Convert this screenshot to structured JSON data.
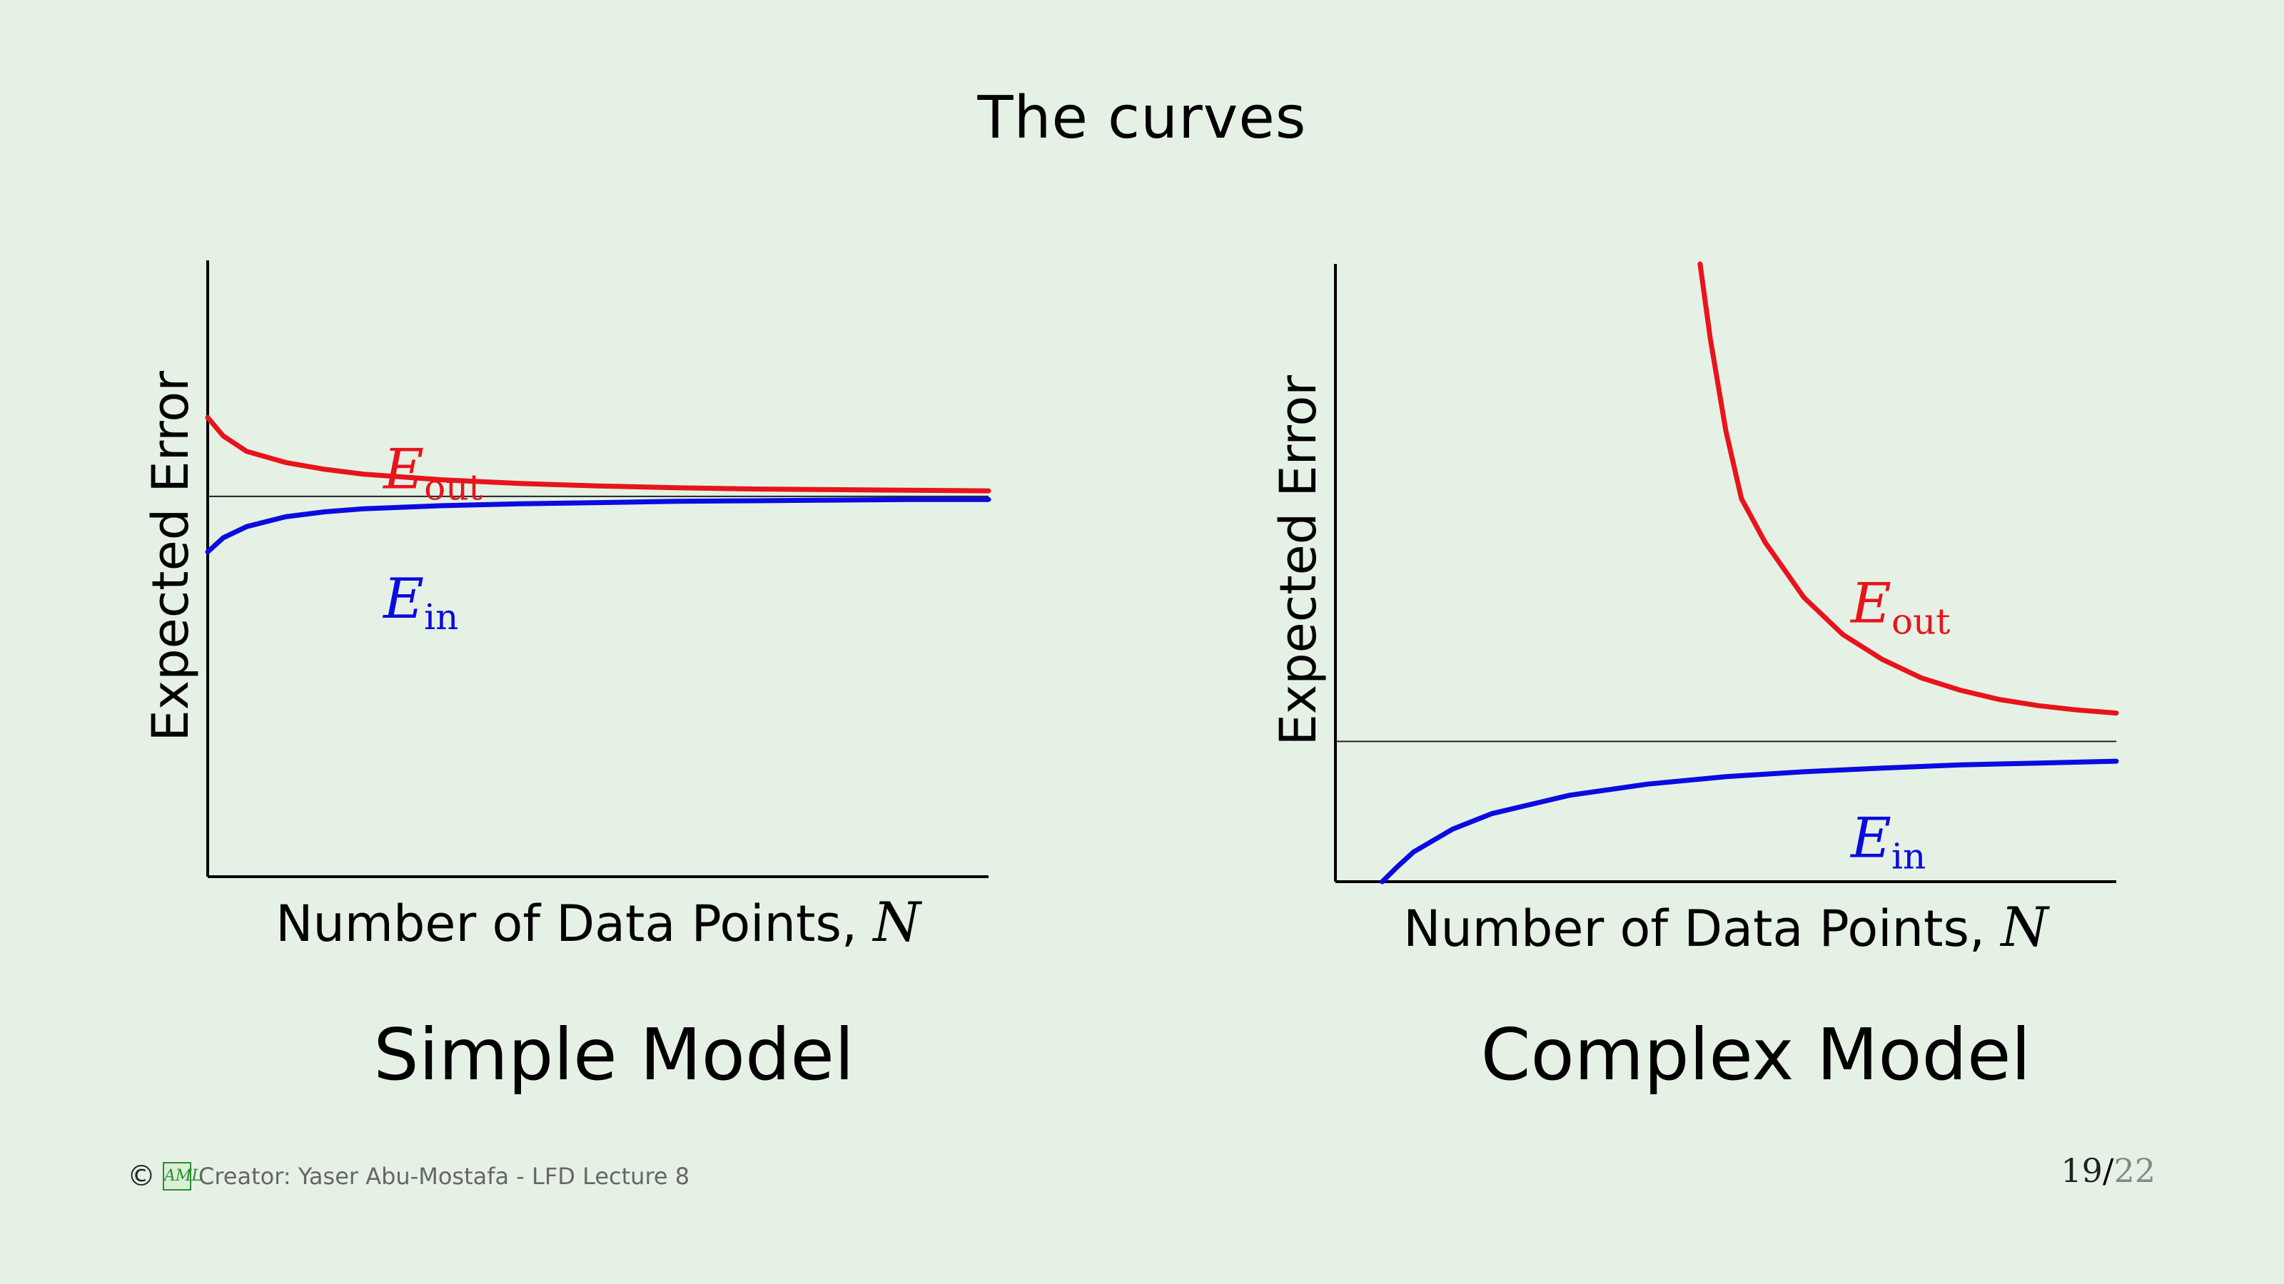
{
  "slide": {
    "title": "The curves"
  },
  "chart_data": [
    {
      "type": "line",
      "title": "Simple Model",
      "xlabel": "Number of Data Points, ",
      "xlabel_var": "N",
      "ylabel": "Expected Error",
      "xlim": [
        0,
        1
      ],
      "ylim": [
        0,
        1
      ],
      "asymptote": 0.617,
      "series": [
        {
          "name": "E",
          "sub": "out",
          "color": "#e8141c",
          "x": [
            0.0,
            0.02,
            0.05,
            0.1,
            0.15,
            0.2,
            0.3,
            0.4,
            0.5,
            0.6,
            0.7,
            0.8,
            0.9,
            1.0
          ],
          "y": [
            0.745,
            0.715,
            0.69,
            0.672,
            0.661,
            0.653,
            0.644,
            0.638,
            0.634,
            0.631,
            0.629,
            0.628,
            0.627,
            0.626
          ]
        },
        {
          "name": "E",
          "sub": "in",
          "color": "#0b0be0",
          "x": [
            0.0,
            0.02,
            0.05,
            0.1,
            0.15,
            0.2,
            0.3,
            0.4,
            0.5,
            0.6,
            0.7,
            0.8,
            0.9,
            1.0
          ],
          "y": [
            0.527,
            0.55,
            0.568,
            0.584,
            0.592,
            0.597,
            0.602,
            0.605,
            0.607,
            0.609,
            0.61,
            0.611,
            0.612,
            0.612
          ]
        }
      ]
    },
    {
      "type": "line",
      "title": "Complex Model",
      "xlabel": "Number of Data Points, ",
      "xlabel_var": "N",
      "ylabel": "Expected Error",
      "xlim": [
        0,
        1
      ],
      "ylim": [
        0,
        1
      ],
      "asymptote": 0.227,
      "series": [
        {
          "name": "E",
          "sub": "out",
          "color": "#e8141c",
          "x": [
            0.467,
            0.48,
            0.5,
            0.52,
            0.55,
            0.6,
            0.65,
            0.7,
            0.75,
            0.8,
            0.85,
            0.9,
            0.95,
            1.0
          ],
          "y": [
            1.0,
            0.88,
            0.73,
            0.62,
            0.55,
            0.46,
            0.4,
            0.36,
            0.33,
            0.31,
            0.295,
            0.285,
            0.278,
            0.273
          ]
        },
        {
          "name": "E",
          "sub": "in",
          "color": "#0b0be0",
          "x": [
            0.06,
            0.08,
            0.1,
            0.15,
            0.2,
            0.3,
            0.4,
            0.5,
            0.6,
            0.7,
            0.8,
            0.9,
            1.0
          ],
          "y": [
            0.0,
            0.025,
            0.048,
            0.085,
            0.11,
            0.14,
            0.158,
            0.17,
            0.178,
            0.184,
            0.189,
            0.192,
            0.195
          ]
        }
      ]
    }
  ],
  "footer": {
    "credit": "Creator: Yaser Abu-Mostafa - LFD Lecture 8",
    "logo_text": "AML",
    "copyright_symbol": "©",
    "page_current": "19",
    "page_separator": "/",
    "page_total": "22"
  }
}
